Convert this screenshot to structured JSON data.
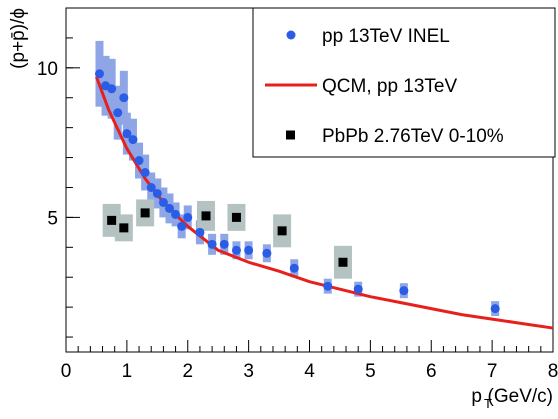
{
  "chart_data": {
    "type": "scatter",
    "ylabel": "(p+p̄)/ϕ",
    "xlabel": "p",
    "xlabel_subscript": "T",
    "xlabel_unit": "(GeV/c)",
    "xlim": [
      0,
      8
    ],
    "ylim": [
      0.5,
      12
    ],
    "xticks": [
      0,
      1,
      2,
      3,
      4,
      5,
      6,
      7,
      8
    ],
    "yticks": [
      5,
      10
    ],
    "legend": "top-right",
    "series": [
      {
        "name": "pp 13TeV INEL",
        "type": "scatter",
        "marker": "circle",
        "color": "#2a5ce6",
        "box_color": "#8ea6e6",
        "x": [
          0.55,
          0.65,
          0.75,
          0.85,
          0.95,
          1.0,
          1.1,
          1.2,
          1.3,
          1.4,
          1.5,
          1.6,
          1.7,
          1.8,
          1.9,
          2.0,
          2.2,
          2.4,
          2.6,
          2.8,
          3.0,
          3.3,
          3.75,
          4.3,
          4.8,
          5.55,
          7.05
        ],
        "values": [
          9.8,
          9.4,
          9.3,
          8.5,
          9.0,
          7.8,
          7.6,
          6.9,
          6.5,
          6.0,
          5.8,
          5.5,
          5.3,
          5.1,
          4.7,
          5.0,
          4.5,
          4.1,
          4.1,
          3.9,
          3.9,
          3.8,
          3.3,
          2.7,
          2.6,
          2.55,
          1.95
        ],
        "errors": [
          1.1,
          1.0,
          1.0,
          0.9,
          0.9,
          0.7,
          0.7,
          0.6,
          0.6,
          0.5,
          0.5,
          0.5,
          0.5,
          0.4,
          0.4,
          0.4,
          0.4,
          0.35,
          0.35,
          0.3,
          0.3,
          0.3,
          0.3,
          0.25,
          0.25,
          0.25,
          0.25
        ]
      },
      {
        "name": "QCM, pp 13TeV",
        "type": "line",
        "color": "#e8201c",
        "x": [
          0.5,
          0.7,
          1.0,
          1.3,
          1.6,
          2.0,
          2.5,
          3.0,
          3.5,
          4.0,
          4.5,
          5.0,
          5.5,
          6.0,
          6.5,
          7.0,
          7.5,
          8.0
        ],
        "values": [
          9.7,
          8.6,
          7.3,
          6.3,
          5.5,
          4.7,
          3.9,
          3.5,
          3.2,
          2.85,
          2.6,
          2.35,
          2.15,
          1.95,
          1.75,
          1.6,
          1.45,
          1.3
        ]
      },
      {
        "name": "PbPb 2.76TeV 0-10%",
        "type": "scatter",
        "marker": "square",
        "color": "#000000",
        "box_color": "#b4c2c2",
        "x": [
          0.75,
          0.95,
          1.3,
          2.3,
          2.8,
          3.55,
          4.55
        ],
        "values": [
          4.9,
          4.65,
          5.15,
          5.05,
          5.0,
          4.55,
          3.5
        ],
        "errors": [
          0.55,
          0.45,
          0.45,
          0.5,
          0.45,
          0.55,
          0.55
        ]
      }
    ]
  }
}
